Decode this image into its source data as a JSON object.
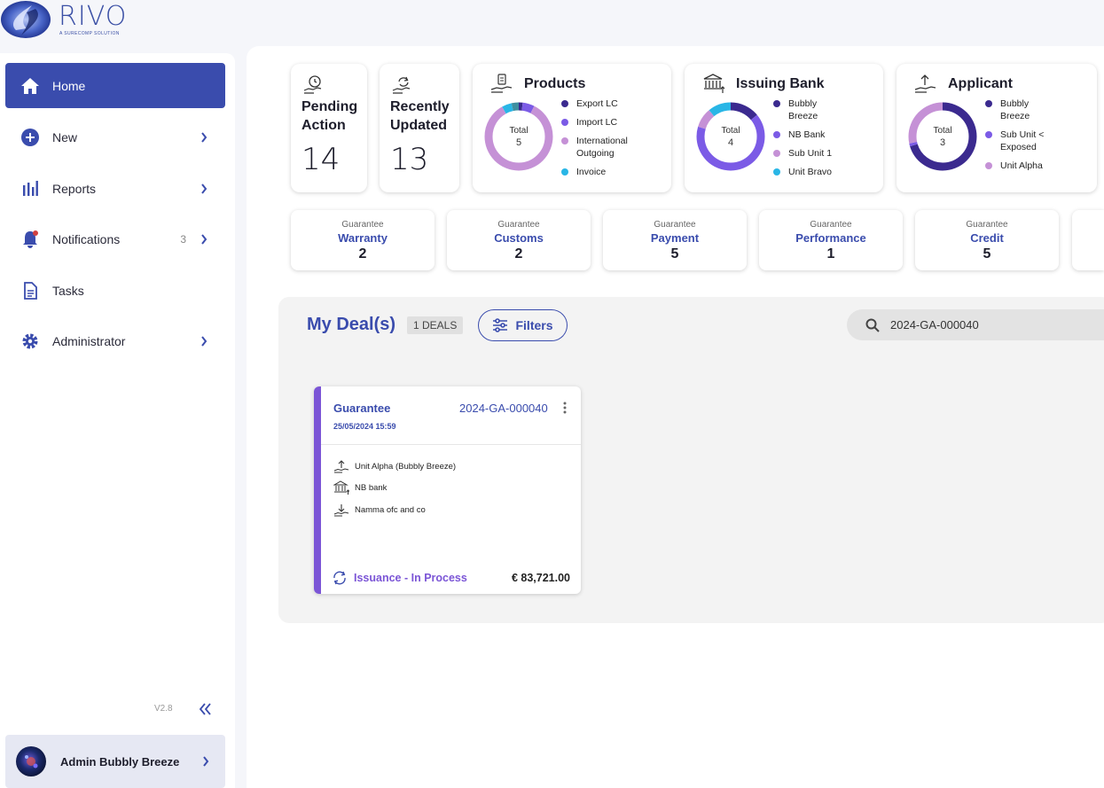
{
  "brand": {
    "name": "RIVO",
    "tagline": "A SURECOMP SOLUTION"
  },
  "sidebar": {
    "items": [
      {
        "label": "Home",
        "icon": "home-icon",
        "active": true
      },
      {
        "label": "New",
        "icon": "plus-circle-icon"
      },
      {
        "label": "Reports",
        "icon": "bar-chart-icon"
      },
      {
        "label": "Notifications",
        "icon": "bell-icon",
        "badge": "3"
      },
      {
        "label": "Tasks",
        "icon": "document-icon"
      },
      {
        "label": "Administrator",
        "icon": "gear-icon"
      }
    ],
    "version": "V2.8",
    "user": {
      "name": "Admin Bubbly Breeze"
    }
  },
  "stats": {
    "pending": {
      "title_line1": "Pending",
      "title_line2": "Action",
      "value": "14"
    },
    "recent": {
      "title_line1": "Recently",
      "title_line2": "Updated",
      "value": "13"
    }
  },
  "charts": {
    "products": {
      "title": "Products",
      "total_label": "Total",
      "total": "5",
      "legend": [
        "Export LC",
        "Import LC",
        "International Outgoing",
        "Invoice"
      ],
      "colors": [
        "#3b2a8f",
        "#7b5be6",
        "#c591d6",
        "#29b6e6"
      ]
    },
    "issuing_bank": {
      "title": "Issuing Bank",
      "total_label": "Total",
      "total": "4",
      "legend": [
        "Bubbly Breeze",
        "NB Bank",
        "Sub Unit 1",
        "Unit Bravo"
      ],
      "colors": [
        "#3b2a8f",
        "#7b5be6",
        "#c591d6",
        "#29b6e6"
      ]
    },
    "applicant": {
      "title": "Applicant",
      "total_label": "Total",
      "total": "3",
      "legend": [
        "Bubbly Breeze",
        "Sub Unit < Exposed",
        "Unit Alpha"
      ],
      "colors": [
        "#3b2a8f",
        "#7b5be6",
        "#c591d6"
      ]
    }
  },
  "guarantees": [
    {
      "type": "Guarantee",
      "name": "Warranty",
      "value": "2"
    },
    {
      "type": "Guarantee",
      "name": "Customs",
      "value": "2"
    },
    {
      "type": "Guarantee",
      "name": "Payment",
      "value": "5"
    },
    {
      "type": "Guarantee",
      "name": "Performance",
      "value": "1"
    },
    {
      "type": "Guarantee",
      "name": "Credit",
      "value": "5"
    }
  ],
  "deals": {
    "title": "My Deal(s)",
    "count_label": "1 DEALS",
    "filters_label": "Filters",
    "search_value": "2024-GA-000040",
    "card": {
      "type": "Guarantee",
      "id": "2024-GA-000040",
      "date": "25/05/2024 15:59",
      "applicant": "Unit Alpha (Bubbly Breeze)",
      "bank": "NB bank",
      "beneficiary": "Namma ofc and co",
      "status": "Issuance - In Process",
      "amount": "€ 83,721.00"
    }
  }
}
